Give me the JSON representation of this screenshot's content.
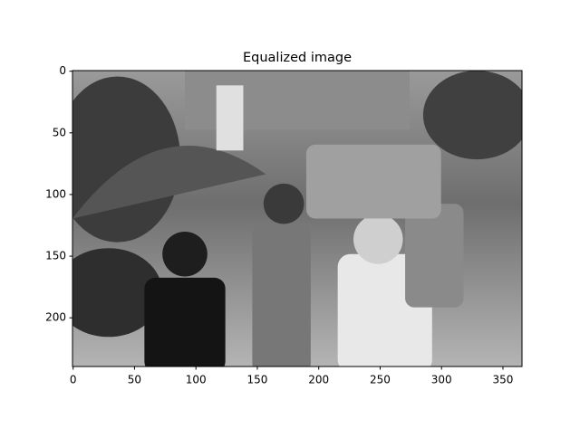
{
  "chart_data": {
    "type": "image",
    "title": "Equalized image",
    "xlim": [
      -0.5,
      365.5
    ],
    "ylim": [
      239.5,
      -0.5
    ],
    "xticks": [
      0,
      50,
      100,
      150,
      200,
      250,
      300,
      350
    ],
    "yticks": [
      0,
      50,
      100,
      150,
      200
    ],
    "colormap": "gray"
  }
}
